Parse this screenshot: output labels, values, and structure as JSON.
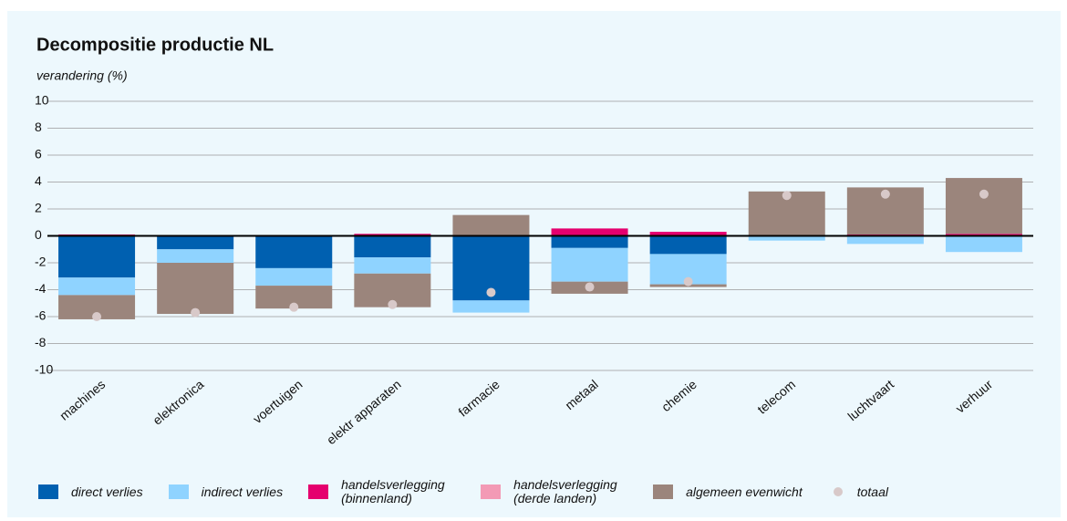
{
  "chart_data": {
    "type": "stacked_bar",
    "title": "Decompositie productie NL",
    "y_label": "verandering (%)",
    "categories": [
      "machines",
      "elektronica",
      "voertuigen",
      "elektr apparaten",
      "farmacie",
      "metaal",
      "chemie",
      "telecom",
      "luchtvaart",
      "verhuur"
    ],
    "series": [
      {
        "name": "direct verlies",
        "color": "#0060b0",
        "values": [
          -3.1,
          -1.0,
          -2.4,
          -1.6,
          -4.8,
          -0.9,
          -1.35,
          0,
          0,
          0
        ]
      },
      {
        "name": "indirect verlies",
        "color": "#8fd3ff",
        "values": [
          -1.3,
          -1.0,
          -1.3,
          -1.2,
          -0.9,
          -2.5,
          -2.25,
          -0.35,
          -0.6,
          -1.2
        ]
      },
      {
        "name": "handelsverlegging (binnenland)",
        "color": "#e5006e",
        "values": [
          0.1,
          0,
          0,
          0.15,
          0,
          0.55,
          0.3,
          0,
          0.1,
          0.15
        ]
      },
      {
        "name": "handelsverlegging (derde landen)",
        "color": "#f39ab5",
        "values": [
          0,
          0,
          0,
          0,
          0,
          0,
          0,
          0,
          0,
          0
        ]
      },
      {
        "name": "algemeen evenwicht",
        "color": "#9b857c",
        "values": [
          -1.8,
          -3.8,
          -1.7,
          -2.5,
          1.55,
          -0.9,
          -0.2,
          3.3,
          3.5,
          4.15
        ]
      }
    ],
    "total": {
      "name": "totaal",
      "color": "#d8c9c9",
      "values": [
        -6.0,
        -5.7,
        -5.3,
        -5.1,
        -4.2,
        -3.8,
        -3.4,
        3.0,
        3.1,
        3.1
      ]
    },
    "ylim": [
      -10,
      10
    ],
    "yticks": [
      -10,
      -8,
      -6,
      -4,
      -2,
      0,
      2,
      4,
      6,
      8,
      10
    ],
    "grid": true
  }
}
